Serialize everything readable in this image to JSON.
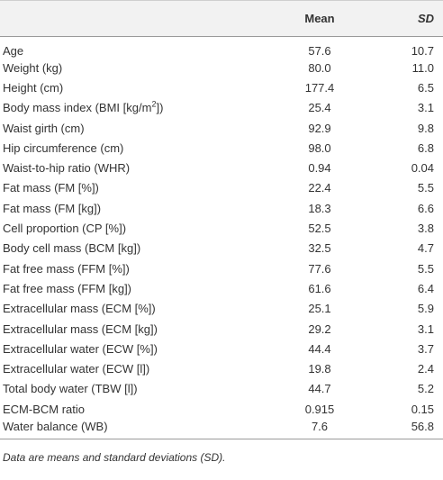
{
  "table": {
    "header": [
      "",
      "Mean",
      "SD"
    ],
    "rows": [
      [
        "Age",
        "57.6",
        "10.7"
      ],
      [
        "Weight (kg)",
        "80.0",
        "11.0"
      ],
      [
        "Height (cm)",
        "177.4",
        "6.5"
      ],
      [
        [
          "Body mass index (BMI [kg/m",
          "2",
          "])"
        ],
        "25.4",
        "3.1"
      ],
      [
        "Waist girth (cm)",
        "92.9",
        "9.8"
      ],
      [
        "Hip circumference (cm)",
        "98.0",
        "6.8"
      ],
      [
        "Waist-to-hip ratio (WHR)",
        "0.94",
        "0.04"
      ],
      [
        "Fat mass (FM [%])",
        "22.4",
        "5.5"
      ],
      [
        "Fat mass (FM [kg])",
        "18.3",
        "6.6"
      ],
      [
        "Cell proportion (CP [%])",
        "52.5",
        "3.8"
      ],
      [
        "Body cell mass (BCM [kg])",
        "32.5",
        "4.7"
      ],
      [
        "Fat free mass (FFM [%])",
        "77.6",
        "5.5"
      ],
      [
        "Fat free mass (FFM [kg])",
        "61.6",
        "6.4"
      ],
      [
        "Extracellular mass (ECM [%])",
        "25.1",
        "5.9"
      ],
      [
        "Extracellular mass (ECM [kg])",
        "29.2",
        "3.1"
      ],
      [
        "Extracellular water (ECW [%])",
        "44.4",
        "3.7"
      ],
      [
        "Extracellular water (ECW [l])",
        "19.8",
        "2.4"
      ],
      [
        "Total body water (TBW [l])",
        "44.7",
        "5.2"
      ],
      [
        "ECM-BCM ratio",
        "0.915",
        "0.15"
      ],
      [
        "Water balance (WB)",
        "7.6",
        "56.8"
      ]
    ],
    "footnote": "Data are means and standard deviations (SD)."
  }
}
